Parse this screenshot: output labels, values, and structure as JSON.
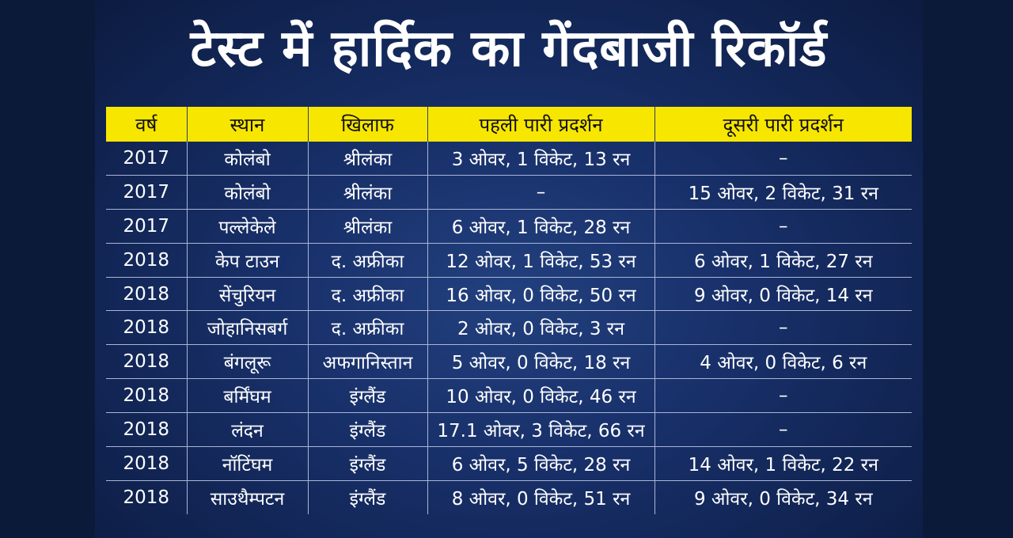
{
  "title": "टेस्ट में हार्दिक का गेंदबाजी रिकॉर्ड",
  "colors": {
    "background": "#102148",
    "header_fill": "#f7e600",
    "text": "#ffffff"
  },
  "table": {
    "headers": [
      "वर्ष",
      "स्थान",
      "खिलाफ",
      "पहली पारी प्रदर्शन",
      "दूसरी पारी प्रदर्शन"
    ],
    "rows": [
      [
        "2017",
        "कोलंबो",
        "श्रीलंका",
        "3 ओवर, 1 विकेट, 13 रन",
        "–"
      ],
      [
        "2017",
        "कोलंबो",
        "श्रीलंका",
        "–",
        "15 ओवर, 2 विकेट, 31 रन"
      ],
      [
        "2017",
        "पल्लेकेले",
        "श्रीलंका",
        "6 ओवर, 1 विकेट, 28 रन",
        "–"
      ],
      [
        "2018",
        "केप टाउन",
        "द. अफ्रीका",
        "12 ओवर, 1 विकेट, 53 रन",
        "6 ओवर, 1 विकेट, 27 रन"
      ],
      [
        "2018",
        "सेंचुरियन",
        "द. अफ्रीका",
        "16 ओवर, 0 विकेट, 50 रन",
        "9 ओवर, 0 विकेट, 14 रन"
      ],
      [
        "2018",
        "जोहानिसबर्ग",
        "द. अफ्रीका",
        "2 ओवर, 0 विकेट, 3 रन",
        "–"
      ],
      [
        "2018",
        "बंगलूरू",
        "अफगानिस्तान",
        "5 ओवर, 0 विकेट, 18 रन",
        "4 ओवर, 0 विकेट, 6 रन"
      ],
      [
        "2018",
        "बर्मिंघम",
        "इंग्लैंड",
        "10 ओवर, 0 विकेट, 46 रन",
        "–"
      ],
      [
        "2018",
        "लंदन",
        "इंग्लैंड",
        "17.1 ओवर, 3 विकेट, 66 रन",
        "–"
      ],
      [
        "2018",
        "नॉटिंघम",
        "इंग्लैंड",
        "6 ओवर, 5 विकेट, 28 रन",
        "14 ओवर, 1 विकेट, 22 रन"
      ],
      [
        "2018",
        "साउथैम्पटन",
        "इंग्लैंड",
        "8 ओवर, 0 विकेट, 51 रन",
        "9 ओवर, 0 विकेट, 34 रन"
      ]
    ]
  }
}
